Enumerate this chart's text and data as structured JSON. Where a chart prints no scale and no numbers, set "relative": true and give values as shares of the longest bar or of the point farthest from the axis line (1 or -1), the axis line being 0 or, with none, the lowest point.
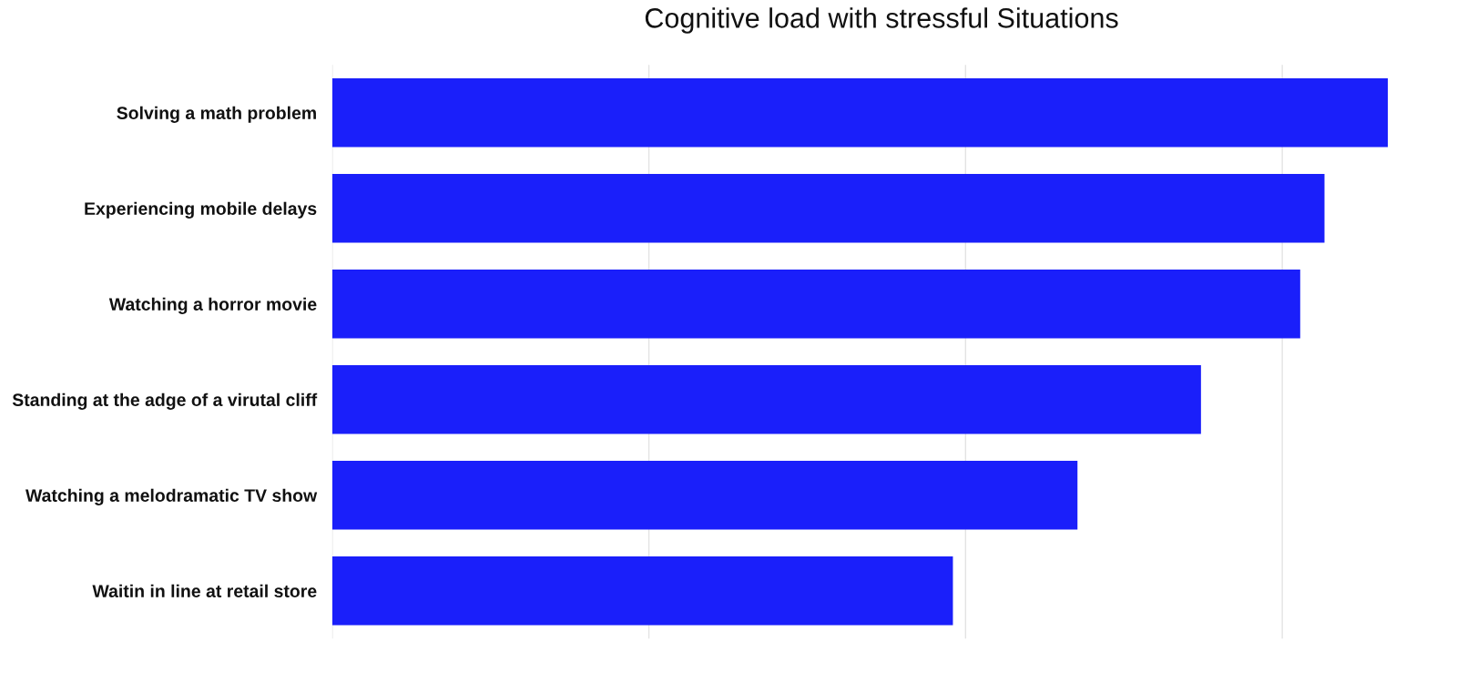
{
  "chart_data": {
    "type": "bar",
    "orientation": "horizontal",
    "relative": true,
    "title": "Cognitive load with stressful Situations",
    "categories": [
      "Solving a math problem",
      "Experiencing mobile delays",
      "Watching a horror movie",
      "Standing at the adge of a virutal cliff",
      "Watching a melodramatic TV show",
      "Waitin in line at retail store"
    ],
    "values": [
      1,
      0.94,
      0.917,
      0.823,
      0.706,
      0.588
    ],
    "color": "#1a1ffa",
    "grid": "x",
    "tick_labels": "y"
  }
}
